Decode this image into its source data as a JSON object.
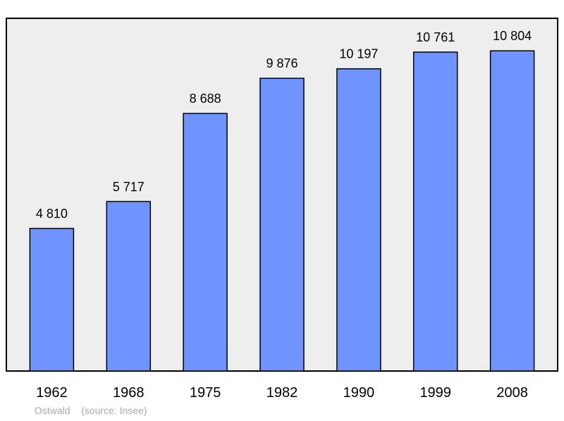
{
  "chart_data": {
    "type": "bar",
    "title": "",
    "xlabel": "",
    "ylabel": "",
    "categories": [
      "1962",
      "1968",
      "1975",
      "1982",
      "1990",
      "1999",
      "2008"
    ],
    "values": [
      4810,
      5717,
      8688,
      9876,
      10197,
      10761,
      10804
    ],
    "value_labels": [
      "4 810",
      "5 717",
      "8 688",
      "9 876",
      "10 197",
      "10 761",
      "10 804"
    ],
    "ylim": [
      0,
      11600
    ],
    "grid": false,
    "bar_color": "#7094ff",
    "plot_background": "#eeeeee"
  },
  "caption": {
    "place": "Ostwald",
    "source": "(source: Insee)"
  }
}
